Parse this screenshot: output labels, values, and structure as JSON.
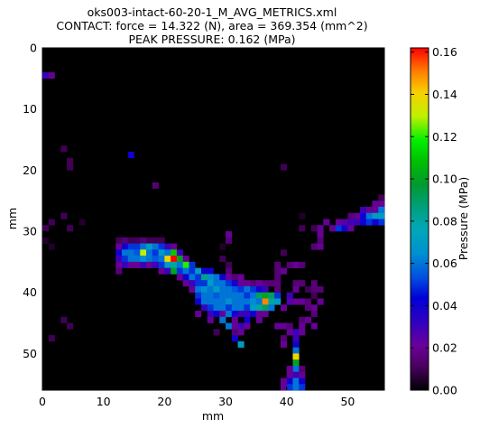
{
  "chart_data": {
    "type": "heatmap",
    "title": "oks003-intact-60-20-1_M_AVG_METRICS.xml",
    "subtitle_1": "CONTACT: force = 14.322 (N), area = 369.354 (mm^2)",
    "subtitle_2": "PEAK PRESSURE: 0.162 (MPa)",
    "xlabel": "mm",
    "ylabel": "mm",
    "xlim": [
      0,
      56
    ],
    "ylim": [
      56,
      0
    ],
    "x_ticks": [
      "0",
      "10",
      "20",
      "30",
      "40",
      "50"
    ],
    "y_ticks": [
      "0",
      "10",
      "20",
      "30",
      "40",
      "50"
    ],
    "colorbar": {
      "label": "Pressure (MPa)",
      "range": [
        0.0,
        0.162
      ],
      "ticks": [
        "0.00",
        "0.02",
        "0.04",
        "0.06",
        "0.08",
        "0.10",
        "0.12",
        "0.14",
        "0.16"
      ]
    },
    "background_color": "#000000",
    "grid": false,
    "cells": [
      [
        0,
        4,
        0.03
      ],
      [
        1,
        4,
        0.02
      ],
      [
        3,
        16,
        0.01
      ],
      [
        4,
        18,
        0.01
      ],
      [
        4,
        19,
        0.01
      ],
      [
        14,
        17,
        0.04
      ],
      [
        18,
        22,
        0.015
      ],
      [
        39,
        19,
        0.01
      ],
      [
        3,
        27,
        0.01
      ],
      [
        1,
        28,
        0.01
      ],
      [
        4,
        29,
        0.01
      ],
      [
        0,
        29,
        0.01
      ],
      [
        0,
        31,
        0.005
      ],
      [
        1,
        32,
        0.005
      ],
      [
        6,
        28,
        0.005
      ],
      [
        12,
        31,
        0.01
      ],
      [
        13,
        31,
        0.015
      ],
      [
        14,
        31,
        0.01
      ],
      [
        15,
        31,
        0.01
      ],
      [
        16,
        31,
        0.015
      ],
      [
        17,
        31,
        0.01
      ],
      [
        18,
        31,
        0.01
      ],
      [
        19,
        31,
        0.01
      ],
      [
        12,
        32,
        0.02
      ],
      [
        13,
        32,
        0.04
      ],
      [
        14,
        32,
        0.05
      ],
      [
        15,
        32,
        0.05
      ],
      [
        16,
        32,
        0.06
      ],
      [
        17,
        32,
        0.07
      ],
      [
        18,
        32,
        0.06
      ],
      [
        19,
        32,
        0.05
      ],
      [
        20,
        32,
        0.03
      ],
      [
        21,
        32,
        0.02
      ],
      [
        12,
        33,
        0.04
      ],
      [
        13,
        33,
        0.06
      ],
      [
        14,
        33,
        0.06
      ],
      [
        15,
        33,
        0.055
      ],
      [
        16,
        33,
        0.13
      ],
      [
        17,
        33,
        0.06
      ],
      [
        18,
        33,
        0.05
      ],
      [
        19,
        33,
        0.07
      ],
      [
        20,
        33,
        0.06
      ],
      [
        21,
        33,
        0.11
      ],
      [
        22,
        33,
        0.03
      ],
      [
        12,
        34,
        0.03
      ],
      [
        13,
        34,
        0.05
      ],
      [
        14,
        34,
        0.06
      ],
      [
        15,
        34,
        0.06
      ],
      [
        16,
        34,
        0.065
      ],
      [
        17,
        34,
        0.06
      ],
      [
        18,
        34,
        0.055
      ],
      [
        19,
        34,
        0.06
      ],
      [
        20,
        34,
        0.14
      ],
      [
        21,
        34,
        0.162
      ],
      [
        22,
        34,
        0.1
      ],
      [
        23,
        34,
        0.02
      ],
      [
        12,
        35,
        0.02
      ],
      [
        13,
        35,
        0.03
      ],
      [
        14,
        35,
        0.02
      ],
      [
        15,
        35,
        0.02
      ],
      [
        16,
        35,
        0.03
      ],
      [
        17,
        35,
        0.02
      ],
      [
        18,
        35,
        0.03
      ],
      [
        19,
        35,
        0.05
      ],
      [
        20,
        35,
        0.07
      ],
      [
        21,
        35,
        0.08
      ],
      [
        22,
        35,
        0.06
      ],
      [
        23,
        35,
        0.12
      ],
      [
        24,
        35,
        0.05
      ],
      [
        12,
        36,
        0.015
      ],
      [
        19,
        36,
        0.02
      ],
      [
        20,
        36,
        0.03
      ],
      [
        21,
        36,
        0.1
      ],
      [
        22,
        36,
        0.05
      ],
      [
        23,
        36,
        0.06
      ],
      [
        24,
        36,
        0.05
      ],
      [
        25,
        36,
        0.07
      ],
      [
        26,
        36,
        0.04
      ],
      [
        27,
        36,
        0.04
      ],
      [
        22,
        37,
        0.02
      ],
      [
        23,
        37,
        0.04
      ],
      [
        24,
        37,
        0.06
      ],
      [
        25,
        37,
        0.05
      ],
      [
        26,
        37,
        0.085
      ],
      [
        27,
        37,
        0.065
      ],
      [
        28,
        37,
        0.06
      ],
      [
        29,
        37,
        0.04
      ],
      [
        30,
        37,
        0.02
      ],
      [
        31,
        37,
        0.015
      ],
      [
        32,
        37,
        0.02
      ],
      [
        23,
        38,
        0.02
      ],
      [
        24,
        38,
        0.03
      ],
      [
        25,
        38,
        0.05
      ],
      [
        26,
        38,
        0.05
      ],
      [
        27,
        38,
        0.07
      ],
      [
        28,
        38,
        0.06
      ],
      [
        29,
        38,
        0.06
      ],
      [
        30,
        38,
        0.05
      ],
      [
        31,
        38,
        0.04
      ],
      [
        32,
        38,
        0.02
      ],
      [
        33,
        38,
        0.02
      ],
      [
        34,
        38,
        0.015
      ],
      [
        35,
        38,
        0.02
      ],
      [
        36,
        38,
        0.015
      ],
      [
        37,
        38,
        0.015
      ],
      [
        38,
        38,
        0.015
      ],
      [
        41,
        38,
        0.015
      ],
      [
        24,
        39,
        0.02
      ],
      [
        25,
        39,
        0.06
      ],
      [
        26,
        39,
        0.065
      ],
      [
        27,
        39,
        0.06
      ],
      [
        28,
        39,
        0.07
      ],
      [
        29,
        39,
        0.06
      ],
      [
        30,
        39,
        0.06
      ],
      [
        31,
        39,
        0.055
      ],
      [
        32,
        39,
        0.05
      ],
      [
        33,
        39,
        0.06
      ],
      [
        34,
        39,
        0.05
      ],
      [
        35,
        39,
        0.04
      ],
      [
        36,
        39,
        0.03
      ],
      [
        25,
        40,
        0.05
      ],
      [
        26,
        40,
        0.06
      ],
      [
        27,
        40,
        0.06
      ],
      [
        28,
        40,
        0.055
      ],
      [
        29,
        40,
        0.06
      ],
      [
        30,
        40,
        0.06
      ],
      [
        31,
        40,
        0.06
      ],
      [
        32,
        40,
        0.06
      ],
      [
        33,
        40,
        0.05
      ],
      [
        34,
        40,
        0.06
      ],
      [
        35,
        40,
        0.09
      ],
      [
        36,
        40,
        0.1
      ],
      [
        37,
        40,
        0.09
      ],
      [
        38,
        40,
        0.05
      ],
      [
        25,
        41,
        0.04
      ],
      [
        26,
        41,
        0.06
      ],
      [
        27,
        41,
        0.06
      ],
      [
        28,
        41,
        0.06
      ],
      [
        29,
        41,
        0.06
      ],
      [
        30,
        41,
        0.065
      ],
      [
        31,
        41,
        0.06
      ],
      [
        32,
        41,
        0.06
      ],
      [
        33,
        41,
        0.06
      ],
      [
        34,
        41,
        0.065
      ],
      [
        35,
        41,
        0.06
      ],
      [
        36,
        41,
        0.15
      ],
      [
        37,
        41,
        0.08
      ],
      [
        38,
        41,
        0.07
      ],
      [
        26,
        42,
        0.03
      ],
      [
        27,
        42,
        0.05
      ],
      [
        28,
        42,
        0.06
      ],
      [
        29,
        42,
        0.06
      ],
      [
        30,
        42,
        0.05
      ],
      [
        31,
        42,
        0.06
      ],
      [
        32,
        42,
        0.06
      ],
      [
        33,
        42,
        0.05
      ],
      [
        34,
        42,
        0.07
      ],
      [
        35,
        42,
        0.08
      ],
      [
        36,
        42,
        0.09
      ],
      [
        37,
        42,
        0.06
      ],
      [
        25,
        43,
        0.02
      ],
      [
        27,
        43,
        0.03
      ],
      [
        28,
        43,
        0.04
      ],
      [
        29,
        43,
        0.02
      ],
      [
        30,
        43,
        0.06
      ],
      [
        31,
        43,
        0.04
      ],
      [
        32,
        43,
        0.03
      ],
      [
        33,
        43,
        0.03
      ],
      [
        34,
        43,
        0.04
      ],
      [
        35,
        43,
        0.02
      ],
      [
        36,
        43,
        0.02
      ],
      [
        27,
        44,
        0.02
      ],
      [
        29,
        44,
        0.06
      ],
      [
        31,
        44,
        0.02
      ],
      [
        33,
        44,
        0.04
      ],
      [
        35,
        44,
        0.02
      ],
      [
        30,
        45,
        0.06
      ],
      [
        31,
        45,
        0.02
      ],
      [
        32,
        45,
        0.03
      ],
      [
        33,
        45,
        0.02
      ],
      [
        28,
        46,
        0.01
      ],
      [
        31,
        46,
        0.015
      ],
      [
        32,
        46,
        0.02
      ],
      [
        31,
        47,
        0.04
      ],
      [
        32,
        48,
        0.07
      ],
      [
        38,
        37,
        0.015
      ],
      [
        39,
        36,
        0.02
      ],
      [
        38,
        39,
        0.015
      ],
      [
        41,
        39,
        0.02
      ],
      [
        40,
        40,
        0.03
      ],
      [
        40,
        41,
        0.025
      ],
      [
        39,
        42,
        0.02
      ],
      [
        41,
        41,
        0.02
      ],
      [
        42,
        41,
        0.02
      ],
      [
        42,
        38,
        0.015
      ],
      [
        44,
        38,
        0.015
      ],
      [
        43,
        39,
        0.01
      ],
      [
        44,
        39,
        0.015
      ],
      [
        45,
        39,
        0.015
      ],
      [
        44,
        40,
        0.01
      ],
      [
        43,
        41,
        0.015
      ],
      [
        45,
        41,
        0.02
      ],
      [
        43,
        42,
        0.015
      ],
      [
        44,
        42,
        0.02
      ],
      [
        44,
        43,
        0.015
      ],
      [
        42,
        44,
        0.015
      ],
      [
        43,
        44,
        0.02
      ],
      [
        42,
        45,
        0.02
      ],
      [
        44,
        45,
        0.02
      ],
      [
        38,
        45,
        0.02
      ],
      [
        39,
        45,
        0.02
      ],
      [
        40,
        45,
        0.015
      ],
      [
        38,
        36,
        0.015
      ],
      [
        39,
        33,
        0.01
      ],
      [
        38,
        35,
        0.015
      ],
      [
        40,
        35,
        0.015
      ],
      [
        41,
        35,
        0.02
      ],
      [
        42,
        35,
        0.015
      ],
      [
        39,
        47,
        0.015
      ],
      [
        39,
        48,
        0.02
      ],
      [
        41,
        47,
        0.03
      ],
      [
        41,
        48,
        0.04
      ],
      [
        41,
        49,
        0.06
      ],
      [
        41,
        50,
        0.14
      ],
      [
        41,
        51,
        0.1
      ],
      [
        41,
        52,
        0.06
      ],
      [
        40,
        53,
        0.02
      ],
      [
        41,
        53,
        0.03
      ],
      [
        40,
        54,
        0.04
      ],
      [
        41,
        54,
        0.06
      ],
      [
        42,
        54,
        0.04
      ],
      [
        40,
        55,
        0.05
      ],
      [
        41,
        55,
        0.06
      ],
      [
        42,
        55,
        0.05
      ],
      [
        39,
        55,
        0.02
      ],
      [
        39,
        54,
        0.02
      ],
      [
        40,
        52,
        0.02
      ],
      [
        42,
        52,
        0.015
      ],
      [
        42,
        53,
        0.02
      ],
      [
        40,
        46,
        0.02
      ],
      [
        41,
        46,
        0.03
      ],
      [
        42,
        46,
        0.02
      ],
      [
        42,
        27,
        0.005
      ],
      [
        42,
        29,
        0.01
      ],
      [
        44,
        29,
        0.01
      ],
      [
        45,
        29,
        0.02
      ],
      [
        45,
        30,
        0.02
      ],
      [
        45,
        31,
        0.015
      ],
      [
        45,
        32,
        0.02
      ],
      [
        44,
        32,
        0.015
      ],
      [
        46,
        28,
        0.02
      ],
      [
        47,
        29,
        0.02
      ],
      [
        48,
        28,
        0.02
      ],
      [
        48,
        29,
        0.05
      ],
      [
        49,
        29,
        0.04
      ],
      [
        49,
        28,
        0.025
      ],
      [
        50,
        28,
        0.03
      ],
      [
        50,
        29,
        0.02
      ],
      [
        51,
        27,
        0.02
      ],
      [
        51,
        28,
        0.03
      ],
      [
        52,
        27,
        0.04
      ],
      [
        52,
        28,
        0.04
      ],
      [
        53,
        26,
        0.02
      ],
      [
        53,
        27,
        0.06
      ],
      [
        54,
        26,
        0.02
      ],
      [
        54,
        27,
        0.07
      ],
      [
        55,
        25,
        0.02
      ],
      [
        55,
        26,
        0.06
      ],
      [
        55,
        27,
        0.07
      ],
      [
        55,
        28,
        0.05
      ],
      [
        54,
        25,
        0.02
      ],
      [
        55,
        24,
        0.01
      ],
      [
        52,
        26,
        0.03
      ],
      [
        53,
        28,
        0.05
      ],
      [
        54,
        28,
        0.04
      ],
      [
        50,
        27,
        0.015
      ],
      [
        30,
        30,
        0.02
      ],
      [
        30,
        31,
        0.015
      ],
      [
        29,
        32,
        0.005
      ],
      [
        29,
        34,
        0.01
      ],
      [
        30,
        35,
        0.01
      ],
      [
        30,
        36,
        0.015
      ],
      [
        4,
        45,
        0.01
      ],
      [
        3,
        44,
        0.01
      ],
      [
        1,
        47,
        0.01
      ]
    ]
  }
}
